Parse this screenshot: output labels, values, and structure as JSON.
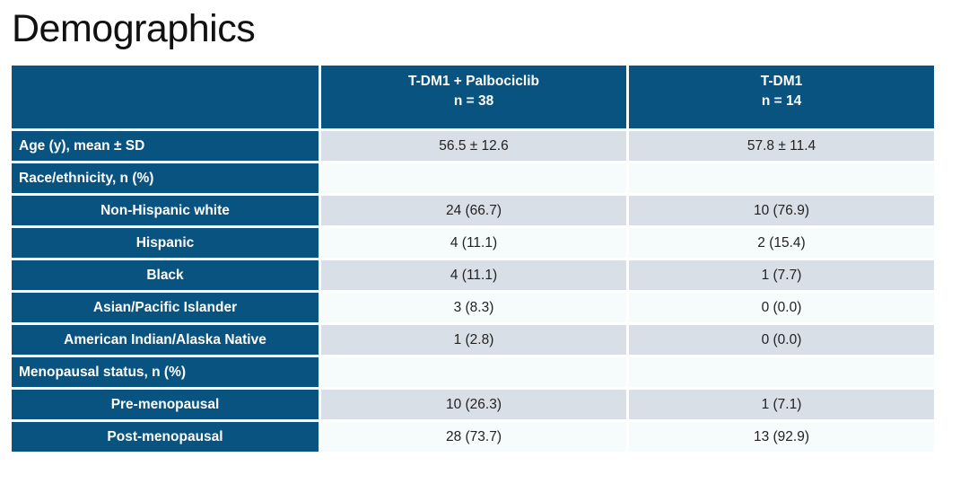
{
  "slide": {
    "title": "Demographics"
  },
  "colors": {
    "header_blue": "#085380",
    "row_gray": "#d9dfe7",
    "row_white": "#f6fbfb",
    "label_text": "#ffffff",
    "data_text": "#222222",
    "title_text": "#111111",
    "page_bg": "#ffffff"
  },
  "table": {
    "columns": [
      {
        "drug": "T-DM1 + Palbociclib",
        "n": "n = 38"
      },
      {
        "drug": "T-DM1",
        "n": "n = 14"
      }
    ],
    "rows": [
      {
        "label": "Age (y), mean ± SD",
        "values": [
          "56.5 ± 12.6",
          "57.8 ± 11.4"
        ]
      },
      {
        "label": "Race/ethnicity, n (%)",
        "values": [
          "",
          ""
        ]
      },
      {
        "label": "Non-Hispanic white",
        "values": [
          "24 (66.7)",
          "10 (76.9)"
        ]
      },
      {
        "label": "Hispanic",
        "values": [
          "4 (11.1)",
          "2 (15.4)"
        ]
      },
      {
        "label": "Black",
        "values": [
          "4 (11.1)",
          "1 (7.7)"
        ]
      },
      {
        "label": "Asian/Pacific Islander",
        "values": [
          "3 (8.3)",
          "0 (0.0)"
        ]
      },
      {
        "label": "American Indian/Alaska Native",
        "values": [
          "1 (2.8)",
          "0 (0.0)"
        ]
      },
      {
        "label": "Menopausal status, n (%)",
        "values": [
          "",
          ""
        ]
      },
      {
        "label": "Pre-menopausal",
        "values": [
          "10 (26.3)",
          "1 (7.1)"
        ]
      },
      {
        "label": "Post-menopausal",
        "values": [
          "28 (73.7)",
          "13 (92.9)"
        ]
      }
    ]
  }
}
